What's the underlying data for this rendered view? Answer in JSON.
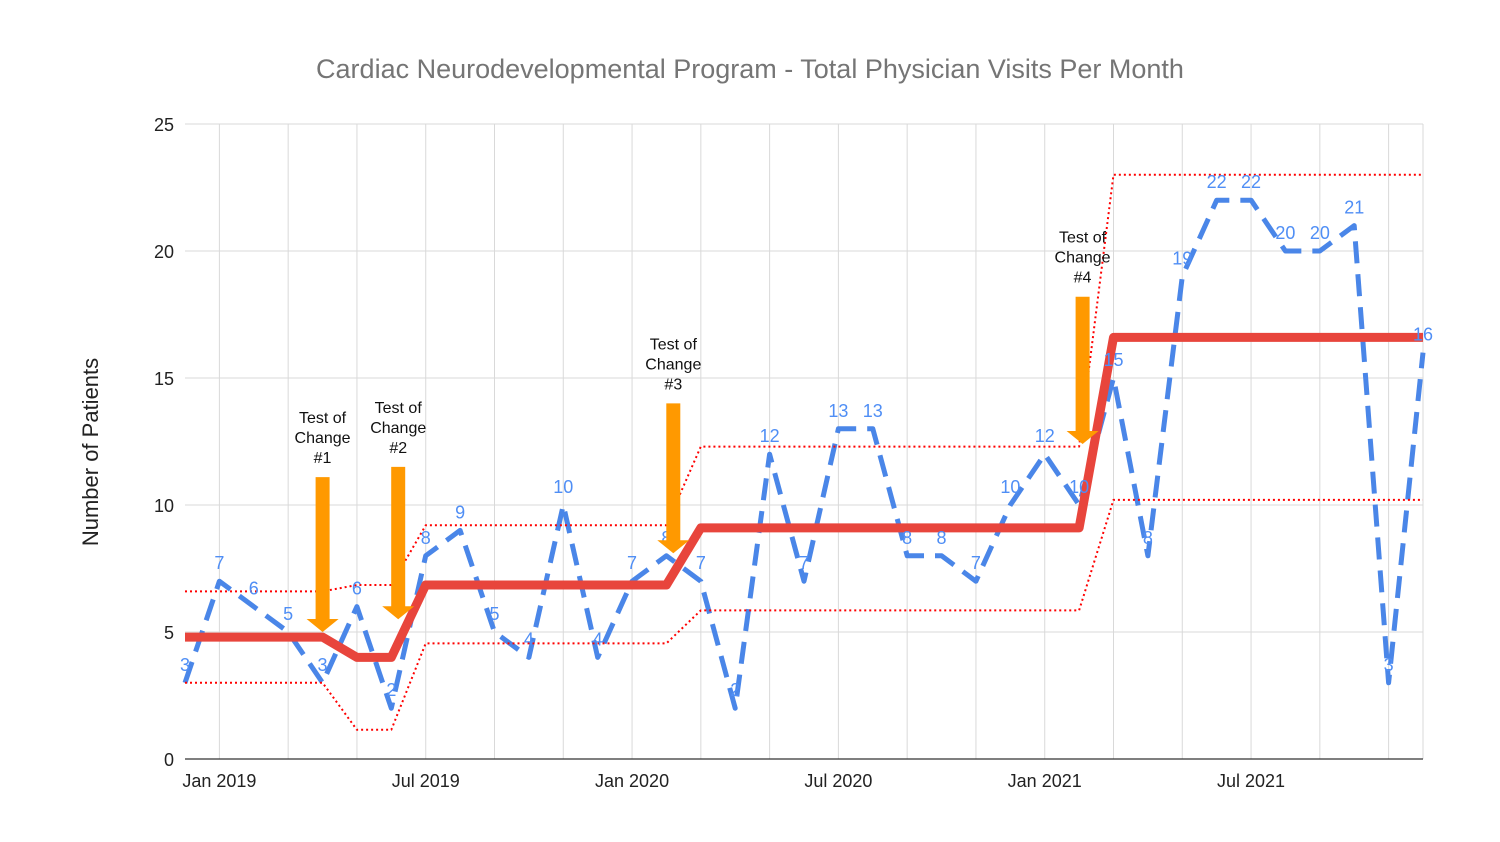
{
  "chart_data": {
    "type": "line",
    "title": "Cardiac Neurodevelopmental Program - Total Physician Visits Per Month",
    "xlabel": "",
    "ylabel": "Number of Patients",
    "ylim": [
      0,
      25
    ],
    "yticks": [
      0,
      5,
      10,
      15,
      20,
      25
    ],
    "x": [
      "Dec 2018",
      "Jan 2019",
      "Feb 2019",
      "Mar 2019",
      "Apr 2019",
      "May 2019",
      "Jun 2019",
      "Jul 2019",
      "Aug 2019",
      "Sep 2019",
      "Oct 2019",
      "Nov 2019",
      "Dec 2019",
      "Jan 2020",
      "Feb 2020",
      "Mar 2020",
      "Apr 2020",
      "May 2020",
      "Jun 2020",
      "Jul 2020",
      "Aug 2020",
      "Sep 2020",
      "Oct 2020",
      "Nov 2020",
      "Dec 2020",
      "Jan 2021",
      "Feb 2021",
      "Mar 2021",
      "Apr 2021",
      "May 2021",
      "Jun 2021",
      "Jul 2021",
      "Aug 2021",
      "Sep 2021",
      "Oct 2021",
      "Nov 2021",
      "Dec 2021"
    ],
    "xtick_labels": [
      {
        "label": "Jan 2019",
        "index": 1
      },
      {
        "label": "Jul 2019",
        "index": 7
      },
      {
        "label": "Jan 2020",
        "index": 13
      },
      {
        "label": "Jul 2020",
        "index": 19
      },
      {
        "label": "Jan 2021",
        "index": 25
      },
      {
        "label": "Jul 2021",
        "index": 31
      }
    ],
    "grid": true,
    "series": [
      {
        "name": "",
        "style": "dashed",
        "color": "#4a86e8",
        "show_labels": true,
        "values": [
          3,
          7,
          6,
          5,
          3,
          6,
          2,
          8,
          9,
          5,
          4,
          10,
          4,
          7,
          8,
          7,
          2,
          12,
          7,
          13,
          13,
          8,
          8,
          7,
          10,
          12,
          10,
          15,
          8,
          19,
          22,
          22,
          20,
          20,
          21,
          3,
          16
        ]
      },
      {
        "name": "",
        "style": "solid",
        "color": "#e8453c",
        "values": [
          4.8,
          4.8,
          4.8,
          4.8,
          4.8,
          4.0,
          4.0,
          6.85,
          6.85,
          6.85,
          6.85,
          6.85,
          6.85,
          6.85,
          6.85,
          9.1,
          9.1,
          9.1,
          9.1,
          9.1,
          9.1,
          9.1,
          9.1,
          9.1,
          9.1,
          9.1,
          9.1,
          16.6,
          16.6,
          16.6,
          16.6,
          16.6,
          16.6,
          16.6,
          16.6,
          16.6,
          16.6
        ]
      },
      {
        "name": "",
        "style": "dotted",
        "color": "#ff0000",
        "values": [
          6.6,
          6.6,
          6.6,
          6.6,
          6.6,
          6.85,
          6.85,
          9.2,
          9.2,
          9.2,
          9.2,
          9.2,
          9.2,
          9.2,
          9.2,
          12.3,
          12.3,
          12.3,
          12.3,
          12.3,
          12.3,
          12.3,
          12.3,
          12.3,
          12.3,
          12.3,
          12.3,
          23.0,
          23.0,
          23.0,
          23.0,
          23.0,
          23.0,
          23.0,
          23.0,
          23.0,
          23.0
        ]
      },
      {
        "name": "",
        "style": "dotted",
        "color": "#ff0000",
        "values": [
          3.0,
          3.0,
          3.0,
          3.0,
          3.0,
          1.15,
          1.15,
          4.55,
          4.55,
          4.55,
          4.55,
          4.55,
          4.55,
          4.55,
          4.55,
          5.85,
          5.85,
          5.85,
          5.85,
          5.85,
          5.85,
          5.85,
          5.85,
          5.85,
          5.85,
          5.85,
          5.85,
          10.2,
          10.2,
          10.2,
          10.2,
          10.2,
          10.2,
          10.2,
          10.2,
          10.2,
          10.2
        ]
      }
    ],
    "annotations": [
      {
        "lines": [
          "Test of",
          "Change",
          "#1"
        ],
        "x_index": 4,
        "arrow_from": 11.1,
        "arrow_to": 5.0
      },
      {
        "lines": [
          "Test of",
          "Change",
          "#2"
        ],
        "x_index": 6.2,
        "arrow_from": 11.5,
        "arrow_to": 5.5
      },
      {
        "lines": [
          "Test of",
          "Change",
          "#3"
        ],
        "x_index": 14.2,
        "arrow_from": 14.0,
        "arrow_to": 8.1
      },
      {
        "lines": [
          "Test of",
          "Change",
          "#4"
        ],
        "x_index": 26.1,
        "arrow_from": 18.2,
        "arrow_to": 12.4
      }
    ],
    "colors": {
      "arrow": "#ff9900",
      "grid": "#d9d9d9",
      "axis": "#333333"
    }
  }
}
